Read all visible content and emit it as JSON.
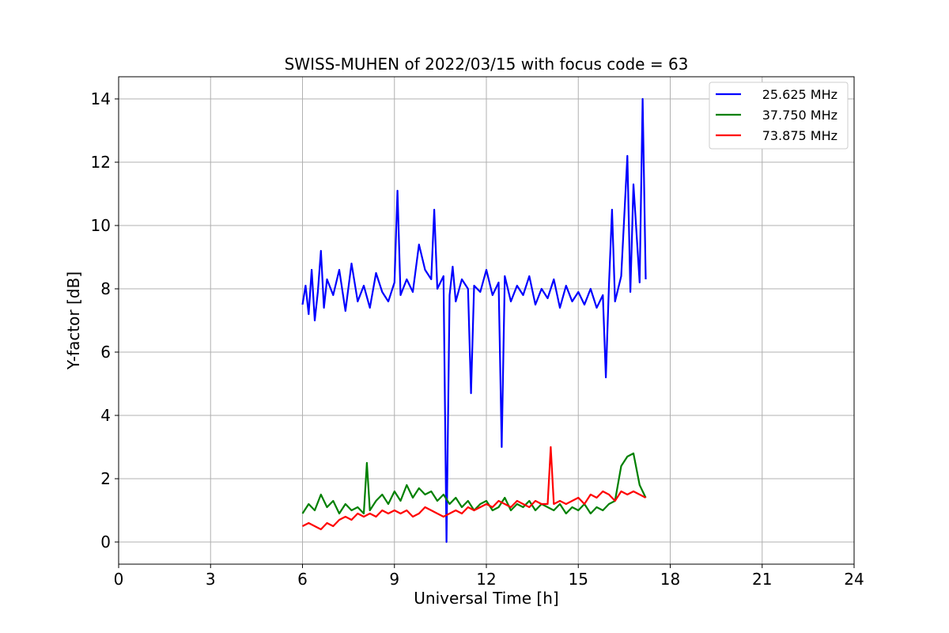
{
  "chart_data": {
    "type": "line",
    "title": "SWISS-MUHEN of 2022/03/15 with focus code = 63",
    "xlabel": "Universal Time [h]",
    "ylabel": "Y-factor [dB]",
    "xlim": [
      0,
      24
    ],
    "ylim": [
      -0.7,
      14.7
    ],
    "x_ticks": [
      "0",
      "3",
      "6",
      "9",
      "12",
      "15",
      "18",
      "21",
      "24"
    ],
    "y_ticks": [
      "0",
      "2",
      "4",
      "6",
      "8",
      "10",
      "12",
      "14"
    ],
    "grid": true,
    "legend_position": "top-right",
    "series": [
      {
        "name": "25.625 MHz",
        "color": "#0000ff",
        "x": [
          6.0,
          6.1,
          6.2,
          6.3,
          6.4,
          6.5,
          6.6,
          6.7,
          6.8,
          7.0,
          7.2,
          7.4,
          7.6,
          7.8,
          8.0,
          8.2,
          8.4,
          8.6,
          8.8,
          9.0,
          9.1,
          9.2,
          9.4,
          9.6,
          9.8,
          10.0,
          10.2,
          10.3,
          10.4,
          10.6,
          10.7,
          10.8,
          10.9,
          11.0,
          11.2,
          11.4,
          11.5,
          11.6,
          11.8,
          12.0,
          12.2,
          12.4,
          12.5,
          12.6,
          12.8,
          13.0,
          13.2,
          13.4,
          13.6,
          13.8,
          14.0,
          14.2,
          14.4,
          14.6,
          14.8,
          15.0,
          15.2,
          15.4,
          15.6,
          15.8,
          15.9,
          16.0,
          16.1,
          16.2,
          16.4,
          16.6,
          16.7,
          16.8,
          17.0,
          17.1,
          17.2
        ],
        "values": [
          7.5,
          8.1,
          7.2,
          8.6,
          7.0,
          7.9,
          9.2,
          7.4,
          8.3,
          7.8,
          8.6,
          7.3,
          8.8,
          7.6,
          8.1,
          7.4,
          8.5,
          7.9,
          7.6,
          8.2,
          11.1,
          7.8,
          8.3,
          7.9,
          9.4,
          8.6,
          8.3,
          10.5,
          8.0,
          8.4,
          0.0,
          7.8,
          8.7,
          7.6,
          8.3,
          8.0,
          4.7,
          8.1,
          7.9,
          8.6,
          7.8,
          8.2,
          3.0,
          8.4,
          7.6,
          8.1,
          7.8,
          8.4,
          7.5,
          8.0,
          7.7,
          8.3,
          7.4,
          8.1,
          7.6,
          7.9,
          7.5,
          8.0,
          7.4,
          7.8,
          5.2,
          8.1,
          10.5,
          7.6,
          8.4,
          12.2,
          7.9,
          11.3,
          8.2,
          14.0,
          8.3
        ]
      },
      {
        "name": "37.750 MHz",
        "color": "#008000",
        "x": [
          6.0,
          6.2,
          6.4,
          6.6,
          6.8,
          7.0,
          7.2,
          7.4,
          7.6,
          7.8,
          8.0,
          8.1,
          8.2,
          8.4,
          8.6,
          8.8,
          9.0,
          9.2,
          9.4,
          9.6,
          9.8,
          10.0,
          10.2,
          10.4,
          10.6,
          10.8,
          11.0,
          11.2,
          11.4,
          11.6,
          11.8,
          12.0,
          12.2,
          12.4,
          12.6,
          12.8,
          13.0,
          13.2,
          13.4,
          13.6,
          13.8,
          14.0,
          14.2,
          14.4,
          14.6,
          14.8,
          15.0,
          15.2,
          15.4,
          15.6,
          15.8,
          16.0,
          16.2,
          16.4,
          16.6,
          16.8,
          17.0,
          17.2
        ],
        "values": [
          0.9,
          1.2,
          1.0,
          1.5,
          1.1,
          1.3,
          0.9,
          1.2,
          1.0,
          1.1,
          0.9,
          2.5,
          1.0,
          1.3,
          1.5,
          1.2,
          1.6,
          1.3,
          1.8,
          1.4,
          1.7,
          1.5,
          1.6,
          1.3,
          1.5,
          1.2,
          1.4,
          1.1,
          1.3,
          1.0,
          1.2,
          1.3,
          1.0,
          1.1,
          1.4,
          1.0,
          1.2,
          1.1,
          1.3,
          1.0,
          1.2,
          1.1,
          1.0,
          1.2,
          0.9,
          1.1,
          1.0,
          1.2,
          0.9,
          1.1,
          1.0,
          1.2,
          1.3,
          2.4,
          2.7,
          2.8,
          1.8,
          1.4
        ]
      },
      {
        "name": "73.875 MHz",
        "color": "#ff0000",
        "x": [
          6.0,
          6.2,
          6.4,
          6.6,
          6.8,
          7.0,
          7.2,
          7.4,
          7.6,
          7.8,
          8.0,
          8.2,
          8.4,
          8.6,
          8.8,
          9.0,
          9.2,
          9.4,
          9.6,
          9.8,
          10.0,
          10.2,
          10.4,
          10.6,
          10.8,
          11.0,
          11.2,
          11.4,
          11.6,
          11.8,
          12.0,
          12.2,
          12.4,
          12.6,
          12.8,
          13.0,
          13.2,
          13.4,
          13.6,
          13.8,
          14.0,
          14.1,
          14.2,
          14.4,
          14.6,
          14.8,
          15.0,
          15.2,
          15.4,
          15.6,
          15.8,
          16.0,
          16.2,
          16.4,
          16.6,
          16.8,
          17.0,
          17.2
        ],
        "values": [
          0.5,
          0.6,
          0.5,
          0.4,
          0.6,
          0.5,
          0.7,
          0.8,
          0.7,
          0.9,
          0.8,
          0.9,
          0.8,
          1.0,
          0.9,
          1.0,
          0.9,
          1.0,
          0.8,
          0.9,
          1.1,
          1.0,
          0.9,
          0.8,
          0.9,
          1.0,
          0.9,
          1.1,
          1.0,
          1.1,
          1.2,
          1.1,
          1.3,
          1.2,
          1.1,
          1.3,
          1.2,
          1.1,
          1.3,
          1.2,
          1.2,
          3.0,
          1.2,
          1.3,
          1.2,
          1.3,
          1.4,
          1.2,
          1.5,
          1.4,
          1.6,
          1.5,
          1.3,
          1.6,
          1.5,
          1.6,
          1.5,
          1.4
        ]
      }
    ]
  }
}
